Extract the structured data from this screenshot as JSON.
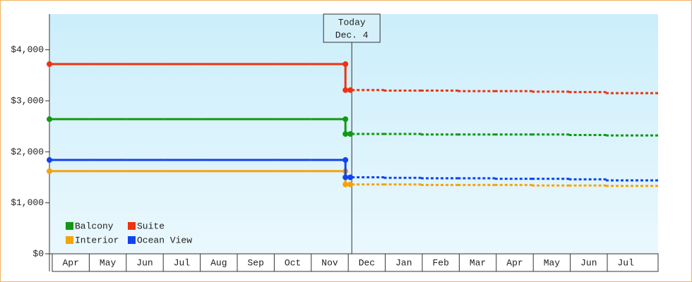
{
  "chart_data": {
    "type": "line",
    "categories": [
      "Apr",
      "May",
      "Jun",
      "Jul",
      "Aug",
      "Sep",
      "Oct",
      "Nov",
      "Dec",
      "Jan",
      "Feb",
      "Mar",
      "Apr",
      "May",
      "Jun",
      "Jul"
    ],
    "series": [
      {
        "name": "Balcony",
        "color": "#119911",
        "values": [
          2640,
          2640,
          2640,
          2640,
          2640,
          2640,
          2640,
          2640,
          null,
          null,
          null,
          null,
          null,
          null,
          null,
          null
        ],
        "forecast": [
          null,
          null,
          null,
          null,
          null,
          null,
          null,
          null,
          2350,
          2350,
          2340,
          2340,
          2340,
          2340,
          2330,
          2320
        ]
      },
      {
        "name": "Suite",
        "color": "#ee3311",
        "values": [
          3720,
          3720,
          3720,
          3720,
          3720,
          3720,
          3720,
          3720,
          null,
          null,
          null,
          null,
          null,
          null,
          null,
          null
        ],
        "forecast": [
          null,
          null,
          null,
          null,
          null,
          null,
          null,
          null,
          3210,
          3200,
          3200,
          3190,
          3190,
          3180,
          3170,
          3150
        ]
      },
      {
        "name": "Interior",
        "color": "#f5a30a",
        "values": [
          1620,
          1620,
          1620,
          1620,
          1620,
          1620,
          1620,
          1620,
          null,
          null,
          null,
          null,
          null,
          null,
          null,
          null
        ],
        "forecast": [
          null,
          null,
          null,
          null,
          null,
          null,
          null,
          null,
          1360,
          1360,
          1350,
          1350,
          1350,
          1340,
          1340,
          1330
        ]
      },
      {
        "name": "Ocean View",
        "color": "#1144ee",
        "values": [
          1840,
          1840,
          1840,
          1840,
          1840,
          1840,
          1840,
          1840,
          null,
          null,
          null,
          null,
          null,
          null,
          null,
          null
        ],
        "forecast": [
          null,
          null,
          null,
          null,
          null,
          null,
          null,
          null,
          1500,
          1490,
          1480,
          1480,
          1470,
          1470,
          1460,
          1440
        ]
      }
    ],
    "ylim": [
      0,
      4700
    ],
    "yticks": [
      {
        "value": 0,
        "label": "$0"
      },
      {
        "value": 1000,
        "label": "$1,000"
      },
      {
        "value": 2000,
        "label": "$2,000"
      },
      {
        "value": 3000,
        "label": "$3,000"
      },
      {
        "value": 4000,
        "label": "$4,000"
      }
    ],
    "annotation": {
      "title": "Today",
      "date": "Dec. 4"
    },
    "legend": "lower left"
  }
}
